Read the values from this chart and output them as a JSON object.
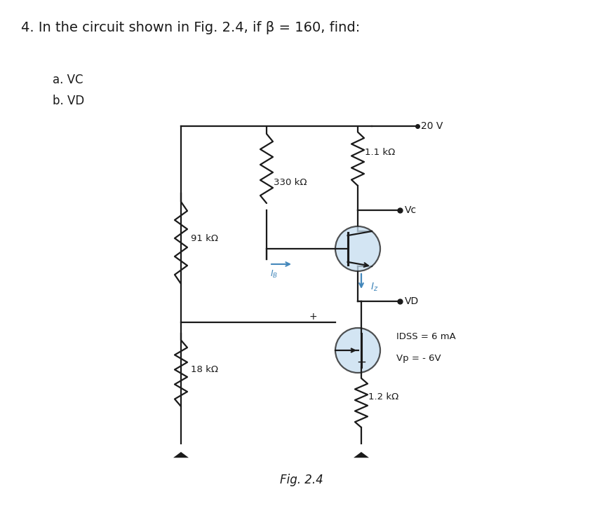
{
  "title": "4. In the circuit shown in Fig. 2.4, if β = 160, find:",
  "sub_items": [
    "a. VC",
    "b. VD"
  ],
  "fig_label": "Fig. 2.4",
  "bg_color": "#ffffff",
  "line_color": "#1a1a1a",
  "transistor_fill": "#c5ddef",
  "arrow_color": "#4488bb",
  "text_color": "#1a1a1a",
  "resistors": {
    "R1": "91 kΩ",
    "R2": "18 kΩ",
    "R3": "330 kΩ",
    "R4": "1.1 kΩ",
    "R5": "1.2 kΩ"
  },
  "labels": {
    "vcc": "20 V",
    "vc": "Vc",
    "vd": "VD",
    "idss": "IDSS = 6 mA",
    "vp": "Vp = - 6V",
    "ib": "$\\mathit{I_B}$",
    "iz": "$\\mathit{I_z}$"
  },
  "lw": 1.6
}
